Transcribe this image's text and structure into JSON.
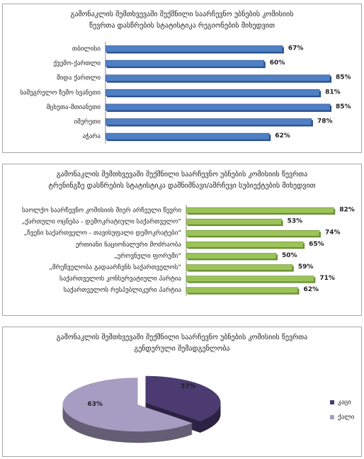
{
  "chart_data": [
    {
      "type": "bar",
      "horizontal": true,
      "title": "გამონაკლის შემთხვევაში შექმნილი საარჩევნო უბნების კომისიის წევრთა დასწრების სტატისტიკა რეგიონების მიხედვით",
      "categories": [
        "თბილისი",
        "ქვემო-ქართლი",
        "შიდა ქართლი",
        "სამეგრელო ზემო სვანეთი",
        "მცხეთა-მთიანეთი",
        "იმერეთი",
        "აჭარა"
      ],
      "values": [
        67,
        60,
        85,
        81,
        85,
        78,
        62
      ],
      "value_labels": [
        "67%",
        "60%",
        "85%",
        "81%",
        "85%",
        "78%",
        "62%"
      ],
      "color": "#4f7fc4"
    },
    {
      "type": "bar",
      "horizontal": true,
      "title": "გამონაკლის შემთხვევაში შექმნილი საარჩევნო უბნების კომისიის წევრთა ტრენინგზე დასწრების სტატისტიკა დამნიშნავი/ამრჩევი სუბიექტების მიხედვით",
      "categories": [
        "საოლქო საარჩევნო კომისიის მიერ არჩეული წევრი",
        "„ქართული ოცნება - დემოკრატიული საქართველო“",
        "„ჩვენი საქართველო - თავისუფალი დემოკრატები“",
        "ერთიანი ნაციონალური მოძრაობა",
        "„ეროვნული ფორუმი“",
        "„მრეწველობა გადაარჩენს საქართველოს“",
        "საქართველოს კონსერვატიული პარტია",
        "საქართველოს რესპუბლიკური პარტია"
      ],
      "values": [
        82,
        53,
        74,
        65,
        50,
        59,
        71,
        62
      ],
      "value_labels": [
        "82%",
        "53%",
        "74%",
        "65%",
        "50%",
        "59%",
        "71%",
        "62%"
      ],
      "color": "#9bc35a"
    },
    {
      "type": "pie",
      "title": "გამონაკლის შემთხვევაში შექმნილი საარჩევნო უბნების კომისიის წევრთა გენდერული შემადგენლობა",
      "categories": [
        "კაცი",
        "ქალი"
      ],
      "values": [
        37,
        63
      ],
      "value_labels": [
        "37%",
        "63%"
      ],
      "colors": [
        "#4b3b70",
        "#a79dc2"
      ],
      "legend": "right"
    }
  ]
}
